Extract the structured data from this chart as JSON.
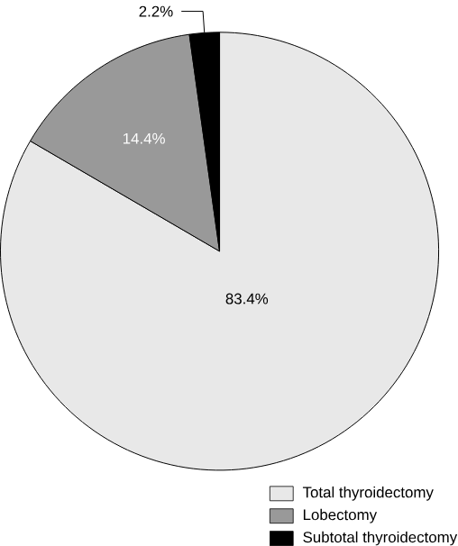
{
  "chart_data": {
    "type": "pie",
    "categories": [
      "Total thyroidectomy",
      "Lobectomy",
      "Subtotal thyroidectomy"
    ],
    "values": [
      83.4,
      14.4,
      2.2
    ],
    "colors": [
      "#e8e8e8",
      "#999999",
      "#000000"
    ],
    "value_labels": [
      "83.4%",
      "14.4%",
      "2.2%"
    ],
    "legend": "bottom right"
  }
}
